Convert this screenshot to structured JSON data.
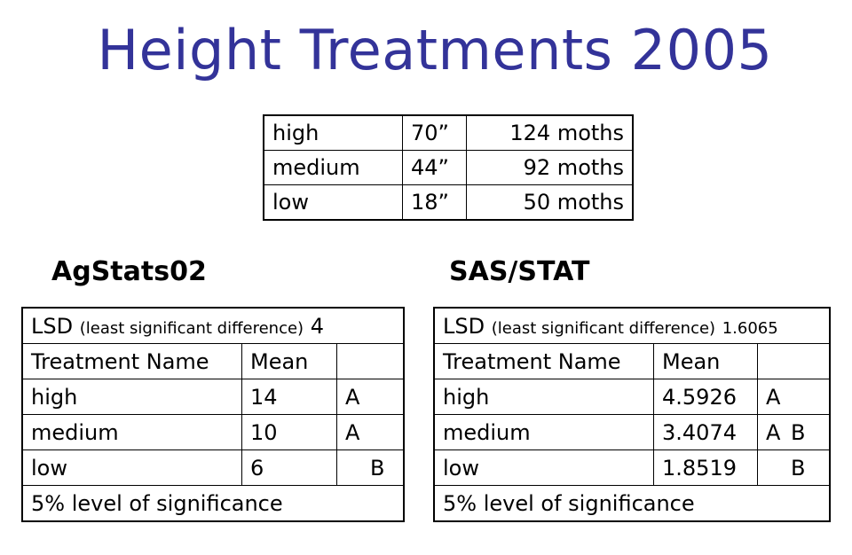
{
  "title": "Height Treatments 2005",
  "height_table": [
    {
      "level": "high",
      "height": "70”",
      "count": "124 moths"
    },
    {
      "level": "medium",
      "height": "44”",
      "count": "92 moths"
    },
    {
      "level": "low",
      "height": "18”",
      "count": "50 moths"
    }
  ],
  "agstats": {
    "heading": "AgStats02",
    "lsd_label": "LSD",
    "lsd_note": "(least significant difference)",
    "lsd_value": "4",
    "col_name": "Treatment Name",
    "col_mean": "Mean",
    "rows": [
      {
        "name": "high",
        "mean": "14",
        "g1": "A",
        "g2": ""
      },
      {
        "name": "medium",
        "mean": "10",
        "g1": "A",
        "g2": ""
      },
      {
        "name": "low",
        "mean": "6",
        "g1": "",
        "g2": "B"
      }
    ],
    "footer": "5% level of significance"
  },
  "sas": {
    "heading": "SAS/STAT",
    "lsd_label": "LSD",
    "lsd_note": "(least significant difference)",
    "lsd_value": "1.6065",
    "col_name": "Treatment Name",
    "col_mean": "Mean",
    "rows": [
      {
        "name": "high",
        "mean": "4.5926",
        "g1": "A",
        "g2": ""
      },
      {
        "name": "medium",
        "mean": "3.4074",
        "g1": "A",
        "g2": "B"
      },
      {
        "name": "low",
        "mean": "1.8519",
        "g1": "",
        "g2": "B"
      }
    ],
    "footer": "5% level of significance"
  }
}
